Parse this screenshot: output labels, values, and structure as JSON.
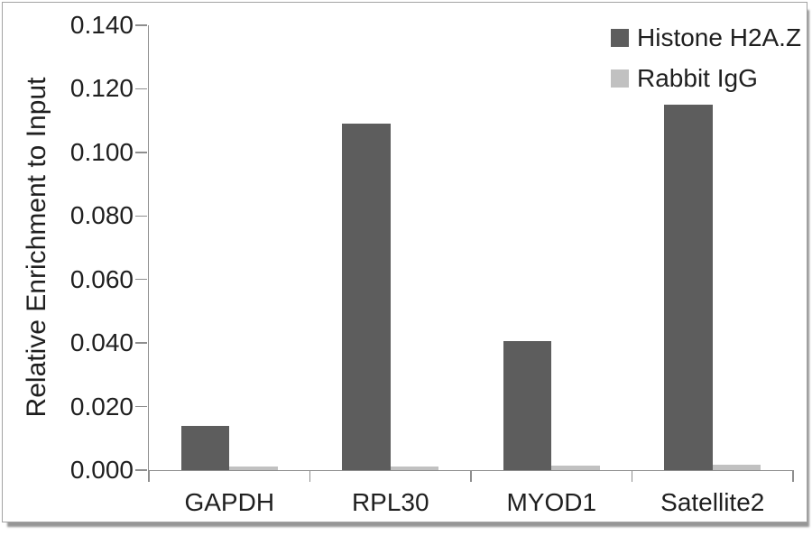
{
  "chart_data": {
    "type": "bar",
    "title": "",
    "xlabel": "",
    "ylabel": "Relative Enrichment to Input",
    "categories": [
      "GAPDH",
      "RPL30",
      "MYOD1",
      "Satellite2"
    ],
    "series": [
      {
        "name": "Histone H2A.Z",
        "color": "#5d5d5d",
        "values": [
          0.014,
          0.109,
          0.0405,
          0.115
        ]
      },
      {
        "name": "Rabbit IgG",
        "color": "#c1c1c1",
        "values": [
          0.001,
          0.001,
          0.0013,
          0.0017
        ]
      }
    ],
    "ylim": [
      0,
      0.14
    ],
    "yticks": [
      0.0,
      0.02,
      0.04,
      0.06,
      0.08,
      0.1,
      0.12,
      0.14
    ],
    "ytick_decimals": 3,
    "grid": false,
    "legend_position": "top-right"
  },
  "colors": {
    "axis": "#8e8e8e",
    "text": "#1f1f1f",
    "background": "#ffffff",
    "frame_border": "#a3a3a3"
  }
}
